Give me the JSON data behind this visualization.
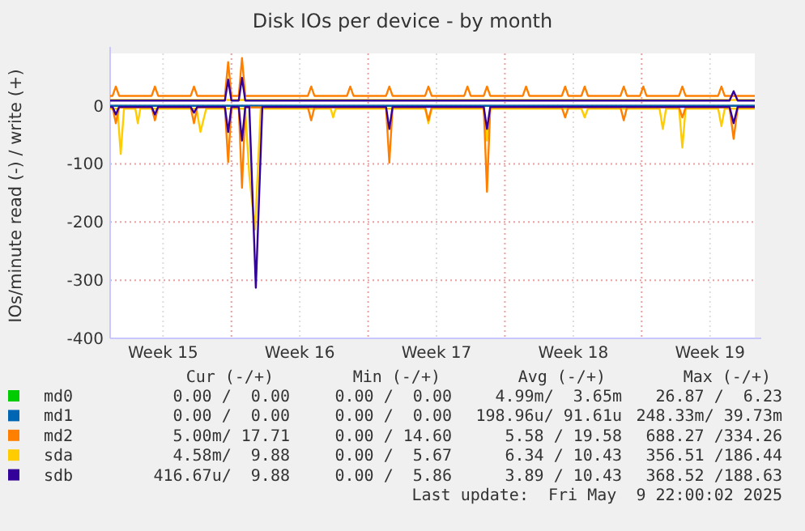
{
  "chart_data": {
    "type": "line",
    "title": "Disk IOs per device - by month",
    "ylabel": "IOs/minute read (-) / write (+)",
    "xlim": [
      "2025-04-07T19:00",
      "2025-05-10T19:00"
    ],
    "ylim": [
      -400,
      90
    ],
    "xticks": [
      {
        "value": "2025-04-10T12:00",
        "label": "Week 15"
      },
      {
        "value": "2025-04-14",
        "label": null
      },
      {
        "value": "2025-04-17T12:00",
        "label": "Week 16"
      },
      {
        "value": "2025-04-21",
        "label": null
      },
      {
        "value": "2025-04-24T12:00",
        "label": "Week 17"
      },
      {
        "value": "2025-04-28",
        "label": null
      },
      {
        "value": "2025-05-01T12:00",
        "label": "Week 18"
      },
      {
        "value": "2025-05-05",
        "label": null
      },
      {
        "value": "2025-05-08T12:00",
        "label": "Week 19"
      }
    ],
    "yticks": [
      -400,
      -300,
      -200,
      -100,
      0
    ],
    "grid": true,
    "legend": "bottom",
    "marker": "none",
    "line_style": "solid",
    "series": [
      {
        "name": "md0",
        "color": "#00cc00"
      },
      {
        "name": "md1",
        "color": "#0066b3",
        "x": [
          "2025-04-07T19:00",
          "2025-05-10T19:00"
        ],
        "values": [
          0,
          0
        ]
      },
      {
        "name": "md2",
        "color": "#ff8000",
        "x": [
          "2025-04-07T19:00",
          "2025-04-07T22:00",
          "2025-04-08T02:00",
          "2025-04-08T06:00",
          "2025-04-09T22:00",
          "2025-04-10T02:00",
          "2025-04-10T06:00",
          "2025-04-11T22:00",
          "2025-04-12T02:00",
          "2025-04-12T06:00",
          "2025-04-13T16:00",
          "2025-04-13T20:00",
          "2025-04-14T00:00",
          "2025-04-14T09:00",
          "2025-04-14T13:00",
          "2025-04-14T17:00",
          "2025-04-17T22:00",
          "2025-04-18T02:00",
          "2025-04-18T06:00",
          "2025-04-19T22:00",
          "2025-04-20T02:00",
          "2025-04-20T06:00",
          "2025-04-21T22:00",
          "2025-04-22T02:00",
          "2025-04-22T06:00",
          "2025-04-23T22:00",
          "2025-04-24T02:00",
          "2025-04-24T06:00",
          "2025-04-25T22:00",
          "2025-04-26T02:00",
          "2025-04-26T06:00",
          "2025-04-26T22:00",
          "2025-04-27T02:00",
          "2025-04-27T06:00",
          "2025-04-28T22:00",
          "2025-04-29T02:00",
          "2025-04-29T06:00",
          "2025-04-30T22:00",
          "2025-05-01T02:00",
          "2025-05-01T06:00",
          "2025-05-01T22:00",
          "2025-05-02T02:00",
          "2025-05-02T06:00",
          "2025-05-03T22:00",
          "2025-05-04T02:00",
          "2025-05-04T06:00",
          "2025-05-04T22:00",
          "2025-05-05T02:00",
          "2025-05-05T06:00",
          "2025-05-06T22:00",
          "2025-05-07T02:00",
          "2025-05-07T06:00",
          "2025-05-08T22:00",
          "2025-05-09T02:00",
          "2025-05-09T06:00",
          "2025-05-10T19:00"
        ],
        "values": [
          17,
          17,
          33,
          17,
          17,
          33,
          17,
          17,
          33,
          17,
          17,
          75,
          17,
          17,
          82,
          17,
          17,
          33,
          17,
          17,
          33,
          17,
          17,
          33,
          17,
          17,
          33,
          17,
          17,
          33,
          17,
          17,
          33,
          17,
          17,
          33,
          17,
          17,
          33,
          17,
          17,
          33,
          17,
          17,
          33,
          17,
          17,
          33,
          17,
          17,
          33,
          17,
          17,
          33,
          17,
          17
        ]
      },
      {
        "name": "sda",
        "color": "#ffcc00",
        "x": [
          "2025-04-07T19:00",
          "2025-05-10T19:00"
        ],
        "values": [
          10,
          10
        ]
      },
      {
        "name": "sdb",
        "color": "#330099",
        "x": [
          "2025-04-07T19:00",
          "2025-04-13T16:00",
          "2025-04-13T20:00",
          "2025-04-14T00:00",
          "2025-04-14T09:00",
          "2025-04-14T13:00",
          "2025-04-14T17:00",
          "2025-05-09T12:00",
          "2025-05-09T17:00",
          "2025-05-09T22:00",
          "2025-05-10T19:00"
        ],
        "values": [
          9,
          9,
          45,
          9,
          9,
          48,
          9,
          9,
          25,
          9,
          9
        ]
      },
      {
        "color": "#ffcc00",
        "x": [
          "2025-04-07T19:00",
          "2025-04-08T04:00",
          "2025-04-08T08:00",
          "2025-04-08T12:00",
          "2025-04-09T02:00",
          "2025-04-09T05:00",
          "2025-04-09T08:00",
          "2025-04-12T05:00",
          "2025-04-12T10:00",
          "2025-04-12T17:00",
          "2025-04-14T17:00",
          "2025-04-14T22:00",
          "2025-04-15T05:00",
          "2025-04-15T12:00",
          "2025-04-19T02:00",
          "2025-04-19T05:00",
          "2025-04-19T08:00",
          "2025-04-23T22:00",
          "2025-04-24T02:00",
          "2025-04-24T06:00",
          "2025-04-26T22:00",
          "2025-04-27T02:00",
          "2025-04-27T06:00",
          "2025-05-01T22:00",
          "2025-05-02T02:00",
          "2025-05-02T06:00",
          "2025-05-05T22:00",
          "2025-05-06T02:00",
          "2025-05-06T06:00",
          "2025-05-06T22:00",
          "2025-05-07T02:00",
          "2025-05-07T06:00",
          "2025-05-08T22:00",
          "2025-05-09T02:00",
          "2025-05-09T06:00",
          "2025-05-10T19:00"
        ],
        "values": [
          -5,
          -5,
          -83,
          -5,
          -5,
          -30,
          -5,
          -5,
          -45,
          -5,
          -5,
          -120,
          -213,
          -5,
          -5,
          -20,
          -5,
          -5,
          -30,
          -5,
          -5,
          -60,
          -5,
          -5,
          -20,
          -5,
          -5,
          -40,
          -5,
          -5,
          -72,
          -5,
          -5,
          -35,
          -5,
          -5
        ]
      },
      {
        "color": "#ff8000",
        "x": [
          "2025-04-07T19:00",
          "2025-04-07T22:00",
          "2025-04-08T02:00",
          "2025-04-08T06:00",
          "2025-04-09T22:00",
          "2025-04-10T02:00",
          "2025-04-10T06:00",
          "2025-04-11T22:00",
          "2025-04-12T02:00",
          "2025-04-12T06:00",
          "2025-04-13T16:00",
          "2025-04-13T20:00",
          "2025-04-14T00:00",
          "2025-04-14T09:00",
          "2025-04-14T13:00",
          "2025-04-14T17:00",
          "2025-04-17T22:00",
          "2025-04-18T02:00",
          "2025-04-18T06:00",
          "2025-04-21T22:00",
          "2025-04-22T02:00",
          "2025-04-22T06:00",
          "2025-04-23T22:00",
          "2025-04-24T02:00",
          "2025-04-24T06:00",
          "2025-04-26T22:00",
          "2025-04-27T02:00",
          "2025-04-27T06:00",
          "2025-04-30T22:00",
          "2025-05-01T02:00",
          "2025-05-01T06:00",
          "2025-05-03T22:00",
          "2025-05-04T02:00",
          "2025-05-04T06:00",
          "2025-05-06T22:00",
          "2025-05-07T02:00",
          "2025-05-07T06:00",
          "2025-05-09T12:00",
          "2025-05-09T17:00",
          "2025-05-09T22:00",
          "2025-05-10T19:00"
        ],
        "values": [
          -3,
          -3,
          -30,
          -3,
          -3,
          -25,
          -3,
          -3,
          -30,
          -3,
          -3,
          -97,
          -3,
          -3,
          -141,
          -3,
          -3,
          -25,
          -3,
          -3,
          -98,
          -3,
          -3,
          -25,
          -3,
          -3,
          -148,
          -3,
          -3,
          -20,
          -3,
          -3,
          -25,
          -3,
          -3,
          -20,
          -3,
          -3,
          -57,
          -3,
          -3
        ]
      },
      {
        "color": "#330099",
        "x": [
          "2025-04-07T19:00",
          "2025-04-07T22:00",
          "2025-04-08T02:00",
          "2025-04-08T06:00",
          "2025-04-09T22:00",
          "2025-04-10T02:00",
          "2025-04-10T06:00",
          "2025-04-11T22:00",
          "2025-04-12T02:00",
          "2025-04-12T06:00",
          "2025-04-13T16:00",
          "2025-04-13T20:00",
          "2025-04-14T00:00",
          "2025-04-14T09:00",
          "2025-04-14T13:00",
          "2025-04-14T17:00",
          "2025-04-14T22:00",
          "2025-04-15T06:00",
          "2025-04-15T14:00",
          "2025-04-21T22:00",
          "2025-04-22T02:00",
          "2025-04-22T06:00",
          "2025-04-26T22:00",
          "2025-04-27T02:00",
          "2025-04-27T06:00",
          "2025-05-09T12:00",
          "2025-05-09T17:00",
          "2025-05-09T22:00",
          "2025-05-10T19:00"
        ],
        "values": [
          -2,
          -2,
          -15,
          -2,
          -2,
          -15,
          -2,
          -2,
          -12,
          -2,
          -2,
          -45,
          -2,
          -2,
          -60,
          -2,
          -2,
          -313,
          -2,
          -2,
          -40,
          -2,
          -2,
          -40,
          -2,
          -2,
          -30,
          -2,
          -2
        ]
      }
    ],
    "annotations": [
      "Cur (-/+)",
      "Min (-/+)",
      "Avg (-/+)",
      "Max (-/+)",
      "0.00 /  0.00",
      "0.00 /  0.00",
      "4.99m/  3.65m",
      "26.87 /  6.23",
      "0.00 /  0.00",
      "0.00 /  0.00",
      "198.96u/ 91.61u",
      "248.33m/ 39.73m",
      "5.00m/ 17.71",
      "0.00 / 14.60",
      "5.58 / 19.58",
      "688.27 /334.26",
      "4.58m/  9.88",
      "0.00 /  5.67",
      "6.34 / 10.43",
      "356.51 /186.44",
      "416.67u/  9.88",
      "0.00 /  5.86",
      "3.89 / 10.43",
      "368.52 /188.63",
      "Last update:  Fri May  9 22:00:02 2025"
    ]
  }
}
